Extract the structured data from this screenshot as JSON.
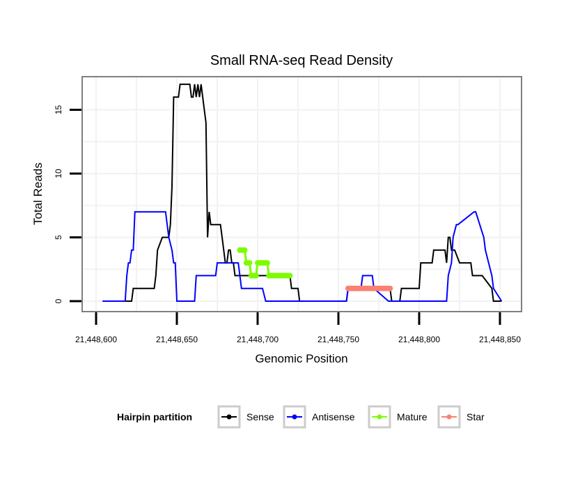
{
  "chart_data": {
    "type": "line",
    "title": "Small RNA-seq Read Density",
    "xlabel": "Genomic Position",
    "ylabel": "Total Reads",
    "xlim": [
      21448590,
      21448858
    ],
    "ylim": [
      -0.8,
      17.5
    ],
    "xticks": [
      21448600,
      21448650,
      21448700,
      21448750,
      21448800,
      21448850
    ],
    "xtick_labels": [
      "21,448,600",
      "21,448,650",
      "21,448,700",
      "21,448,750",
      "21,448,800",
      "21,448,850"
    ],
    "yticks": [
      0,
      5,
      10,
      15
    ],
    "ytick_labels": [
      "0",
      "5",
      "10",
      "15"
    ],
    "grid": true,
    "legend": {
      "title": "Hairpin partition",
      "position": "bottom",
      "entries": [
        {
          "name": "Sense",
          "color": "#000000"
        },
        {
          "name": "Antisense",
          "color": "#0000ff"
        },
        {
          "name": "Mature",
          "color": "#7cfc00"
        },
        {
          "name": "Star",
          "color": "#fa8072"
        }
      ]
    },
    "series": [
      {
        "name": "Sense",
        "color": "#000000",
        "style": "line",
        "x": [
          21448604,
          21448622,
          21448623,
          21448636,
          21448637,
          21448638,
          21448641,
          21448645,
          21448646,
          21448647,
          21448648,
          21448651,
          21448652,
          21448658,
          21448659,
          21448660,
          21448661,
          21448662,
          21448663,
          21448664,
          21448665,
          21448666,
          21448667,
          21448668,
          21448669,
          21448670,
          21448671,
          21448677,
          21448678,
          21448679,
          21448680,
          21448681,
          21448682,
          21448683,
          21448684,
          21448685,
          21448686,
          21448694,
          21448695,
          21448702,
          21448703,
          21448720,
          21448721,
          21448725,
          21448726,
          21448755,
          21448756,
          21448782,
          21448783,
          21448788,
          21448789,
          21448800,
          21448801,
          21448808,
          21448809,
          21448815,
          21448816,
          21448817,
          21448818,
          21448819,
          21448820,
          21448821,
          21448822,
          21448825,
          21448826,
          21448832,
          21448833,
          21448838,
          21448839,
          21448845,
          21448846,
          21448851
        ],
        "y": [
          0,
          0,
          1,
          1,
          2,
          4,
          5,
          5,
          6,
          9,
          16,
          16,
          17,
          17,
          16,
          16,
          17,
          16,
          17,
          16,
          17,
          16,
          15,
          14,
          5,
          7,
          6,
          6,
          5,
          4,
          3,
          3,
          4,
          4,
          3,
          3,
          2,
          2,
          2,
          2,
          2,
          2,
          1,
          1,
          0,
          0,
          1,
          1,
          0,
          0,
          1,
          1,
          3,
          3,
          4,
          4,
          4,
          3,
          5,
          5,
          4,
          4,
          4,
          3,
          3,
          3,
          2,
          2,
          2,
          1,
          0,
          0
        ]
      },
      {
        "name": "Antisense",
        "color": "#0000ff",
        "style": "line",
        "x": [
          21448604,
          21448618,
          21448619,
          21448620,
          21448621,
          21448622,
          21448623,
          21448624,
          21448643,
          21448644,
          21448645,
          21448647,
          21448648,
          21448649,
          21448650,
          21448661,
          21448662,
          21448674,
          21448675,
          21448688,
          21448689,
          21448690,
          21448701,
          21448702,
          21448703,
          21448705,
          21448706,
          21448755,
          21448756,
          21448764,
          21448765,
          21448771,
          21448772,
          21448781,
          21448782,
          21448817,
          21448818,
          21448820,
          21448821,
          21448823,
          21448824,
          21448834,
          21448835,
          21448840,
          21448841,
          21448845,
          21448846,
          21448851
        ],
        "y": [
          0,
          0,
          2,
          3,
          3,
          4,
          4,
          7,
          7,
          6,
          5,
          4,
          3,
          3,
          0,
          0,
          2,
          2,
          3,
          3,
          2,
          1,
          1,
          1,
          1,
          0,
          0,
          0,
          1,
          1,
          2,
          2,
          1,
          0,
          0,
          0,
          2,
          3,
          5,
          6,
          6,
          7,
          7,
          5,
          4,
          2,
          1,
          0
        ]
      },
      {
        "name": "Mature",
        "color": "#7cfc00",
        "style": "points",
        "x": [
          21448689,
          21448690,
          21448691,
          21448692,
          21448693,
          21448694,
          21448695,
          21448696,
          21448697,
          21448698,
          21448699,
          21448700,
          21448701,
          21448702,
          21448703,
          21448704,
          21448705,
          21448706,
          21448707,
          21448708,
          21448709,
          21448710,
          21448711,
          21448712,
          21448713,
          21448714,
          21448715,
          21448716,
          21448717,
          21448718,
          21448719,
          21448720
        ],
        "y": [
          4,
          4,
          4,
          4,
          3,
          3,
          3,
          2,
          2,
          2,
          2,
          3,
          3,
          3,
          3,
          3,
          3,
          3,
          2,
          2,
          2,
          2,
          2,
          2,
          2,
          2,
          2,
          2,
          2,
          2,
          2,
          2
        ]
      },
      {
        "name": "Star",
        "color": "#fa8072",
        "style": "points",
        "x": [
          21448756,
          21448757,
          21448758,
          21448759,
          21448760,
          21448761,
          21448762,
          21448763,
          21448764,
          21448765,
          21448766,
          21448767,
          21448768,
          21448769,
          21448770,
          21448771,
          21448772,
          21448773,
          21448774,
          21448775,
          21448776,
          21448777,
          21448778,
          21448779,
          21448780,
          21448781,
          21448782
        ],
        "y": [
          1,
          1,
          1,
          1,
          1,
          1,
          1,
          1,
          1,
          1,
          1,
          1,
          1,
          1,
          1,
          1,
          1,
          1,
          1,
          1,
          1,
          1,
          1,
          1,
          1,
          1,
          1
        ]
      }
    ]
  }
}
